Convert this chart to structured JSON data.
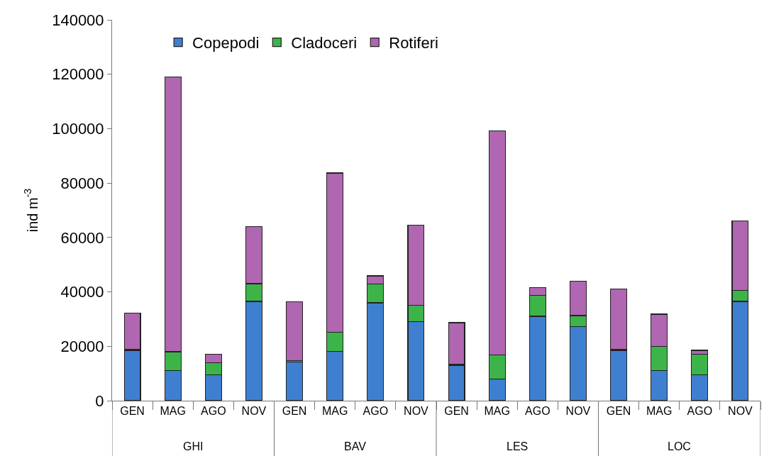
{
  "chart_data": {
    "type": "bar",
    "stacked": true,
    "ylabel": "ind m$^{-3}$",
    "categories": [
      "GEN",
      "MAG",
      "AGO",
      "NOV",
      "GEN",
      "MAG",
      "AGO",
      "NOV",
      "GEN",
      "MAG",
      "AGO",
      "NOV",
      "GEN",
      "MAG",
      "AGO",
      "NOV"
    ],
    "series": [
      {
        "name": "Copepodi",
        "color": "#3f7fd0",
        "values": [
          18500,
          11000,
          9500,
          36500,
          14200,
          18200,
          36000,
          29000,
          13000,
          8000,
          31000,
          27300,
          18500,
          11000,
          9500,
          36500
        ]
      },
      {
        "name": "Cladoceri",
        "color": "#3cb44a",
        "values": [
          300,
          7000,
          4500,
          6500,
          600,
          7000,
          6800,
          6000,
          300,
          8800,
          7700,
          4000,
          300,
          9000,
          7500,
          4000
        ]
      },
      {
        "name": "Rotiferi",
        "color": "#b066b0",
        "values": [
          13500,
          101000,
          3000,
          21000,
          21500,
          58500,
          3100,
          29500,
          15400,
          82400,
          2900,
          12700,
          22200,
          11800,
          1500,
          25500
        ]
      }
    ],
    "annotations": [
      "GHI",
      "BAV",
      "LES",
      "LOC"
    ],
    "ylim": [
      0,
      140000
    ],
    "yticks": [
      0,
      20000,
      40000,
      60000,
      80000,
      100000,
      120000,
      140000
    ],
    "grid": false,
    "legend": "top left"
  }
}
